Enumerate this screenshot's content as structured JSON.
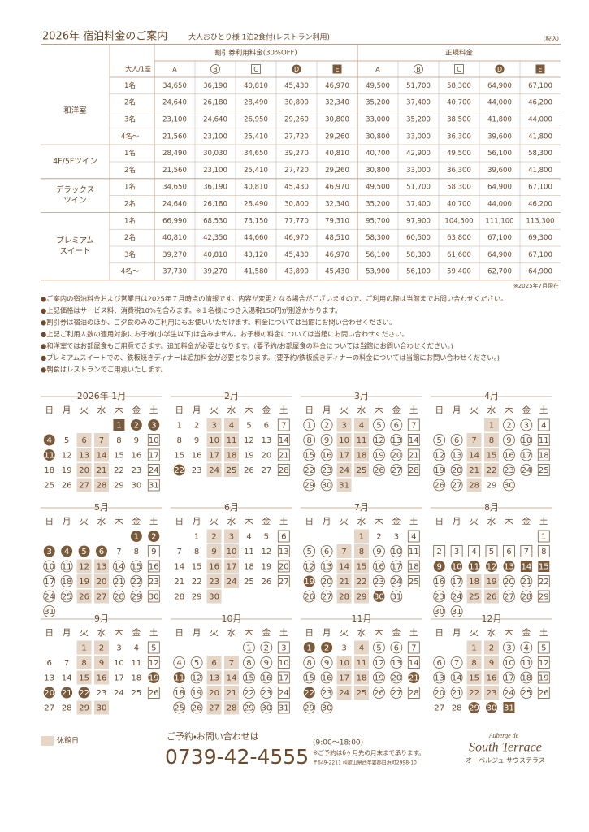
{
  "header": {
    "title": "2026年 宿泊料金のご案内",
    "subtitle": "大人おひとり様 1泊2食付(レストラン利用)",
    "tax": "(税込)"
  },
  "table": {
    "corner": "大人/1室",
    "groups": [
      "割引券利用料金(30%OFF)",
      "正規料金"
    ],
    "rates": [
      "A",
      "B",
      "C",
      "D",
      "E"
    ],
    "rooms": [
      {
        "name": [
          "和洋室"
        ],
        "rows": [
          {
            "persons": "1名",
            "values": [
              "34,650",
              "36,190",
              "40,810",
              "45,430",
              "46,970",
              "49,500",
              "51,700",
              "58,300",
              "64,900",
              "67,100"
            ]
          },
          {
            "persons": "2名",
            "values": [
              "24,640",
              "26,180",
              "28,490",
              "30,800",
              "32,340",
              "35,200",
              "37,400",
              "40,700",
              "44,000",
              "46,200"
            ]
          },
          {
            "persons": "3名",
            "values": [
              "23,100",
              "24,640",
              "26,950",
              "29,260",
              "30,800",
              "33,000",
              "35,200",
              "38,500",
              "41,800",
              "44,000"
            ]
          },
          {
            "persons": "4名～",
            "values": [
              "21,560",
              "23,100",
              "25,410",
              "27,720",
              "29,260",
              "30,800",
              "33,000",
              "36,300",
              "39,600",
              "41,800"
            ]
          }
        ]
      },
      {
        "name": [
          "4F/5Fツイン"
        ],
        "rows": [
          {
            "persons": "1名",
            "values": [
              "28,490",
              "30,030",
              "34,650",
              "39,270",
              "40,810",
              "40,700",
              "42,900",
              "49,500",
              "56,100",
              "58,300"
            ]
          },
          {
            "persons": "2名",
            "values": [
              "21,560",
              "23,100",
              "25,410",
              "27,720",
              "29,260",
              "30,800",
              "33,000",
              "36,300",
              "39,600",
              "41,800"
            ]
          }
        ]
      },
      {
        "name": [
          "デラックス",
          "ツイン"
        ],
        "rows": [
          {
            "persons": "1名",
            "values": [
              "34,650",
              "36,190",
              "40,810",
              "45,430",
              "46,970",
              "49,500",
              "51,700",
              "58,300",
              "64,900",
              "67,100"
            ]
          },
          {
            "persons": "2名",
            "values": [
              "24,640",
              "26,180",
              "28,490",
              "30,800",
              "32,340",
              "35,200",
              "37,400",
              "40,700",
              "44,000",
              "46,200"
            ]
          }
        ]
      },
      {
        "name": [
          "プレミアム",
          "スイート"
        ],
        "rows": [
          {
            "persons": "1名",
            "values": [
              "66,990",
              "68,530",
              "73,150",
              "77,770",
              "79,310",
              "95,700",
              "97,900",
              "104,500",
              "111,100",
              "113,300"
            ]
          },
          {
            "persons": "2名",
            "values": [
              "40,810",
              "42,350",
              "44,660",
              "46,970",
              "48,510",
              "58,300",
              "60,500",
              "63,800",
              "67,100",
              "69,300"
            ]
          },
          {
            "persons": "3名",
            "values": [
              "39,270",
              "40,810",
              "43,120",
              "45,430",
              "46,970",
              "56,100",
              "58,300",
              "61,600",
              "64,900",
              "67,100"
            ]
          },
          {
            "persons": "4名～",
            "values": [
              "37,730",
              "39,270",
              "41,580",
              "43,890",
              "45,430",
              "53,900",
              "56,100",
              "59,400",
              "62,700",
              "64,900"
            ]
          }
        ]
      }
    ],
    "as_of": "※2025年7月現在"
  },
  "notes": [
    "●ご案内の宿泊料金および営業日は2025年７月時点の情報です。内容が変更となる場合がございますので、ご利用の際は当館までお問い合わせください。",
    "●上記価格はサービス料、消費税10%を含みます。※１名様につき入湯税150円が別途かかります。",
    "●割引券は宿泊のほか、ご夕食のみのご利用にもお使いいただけます。料金については当館にお問い合わせください。",
    "●上記ご利用人数の適用対象にお子様(小学生以下)は含みません。お子様の料金については当館にお問い合わせください。",
    "●和洋室ではお部屋食もご用意できます。追加料金が必要となります。(要予約/お部屋食の料金については当館にお問い合わせください。)",
    "●プレミアムスイートでの、鉄板焼きディナーは追加料金が必要となります。(要予約/鉄板焼きディナーの料金については当館にお問い合わせください。)",
    "●朝食はレストランでご用意いたします。"
  ],
  "calendar": {
    "weekdays": [
      "日",
      "月",
      "火",
      "水",
      "木",
      "金",
      "土"
    ],
    "months": [
      {
        "title": "2026年 1月",
        "weeks": [
          [
            null,
            null,
            null,
            null,
            1,
            2,
            3
          ],
          [
            4,
            5,
            6,
            7,
            8,
            9,
            10
          ],
          [
            11,
            12,
            13,
            14,
            15,
            16,
            17
          ],
          [
            18,
            19,
            20,
            21,
            22,
            23,
            24
          ],
          [
            25,
            26,
            27,
            28,
            29,
            30,
            31
          ]
        ],
        "rates": "EDDDAAAAACDAAAAACAAAAAACAAAAAAC",
        "closed": [
          6,
          7,
          13,
          14,
          20,
          21,
          27,
          28
        ]
      },
      {
        "title": "2月",
        "weeks": [
          [
            1,
            2,
            3,
            4,
            5,
            6,
            7
          ],
          [
            8,
            9,
            10,
            11,
            12,
            13,
            14
          ],
          [
            15,
            16,
            17,
            18,
            19,
            20,
            21
          ],
          [
            22,
            23,
            24,
            25,
            26,
            27,
            28
          ]
        ],
        "rates": "AAAAAACAAAAAACAAAAAACDAAAAAC",
        "closed": [
          3,
          4,
          10,
          11,
          17,
          18,
          24,
          25
        ]
      },
      {
        "title": "3月",
        "weeks": [
          [
            1,
            2,
            3,
            4,
            5,
            6,
            7
          ],
          [
            8,
            9,
            10,
            11,
            12,
            13,
            14
          ],
          [
            15,
            16,
            17,
            18,
            19,
            20,
            21
          ],
          [
            22,
            23,
            24,
            25,
            26,
            27,
            28
          ],
          [
            29,
            30,
            31
          ]
        ],
        "rates": "BBAABBCBBAABBCBBAABBCBBAABBCBBA",
        "closed": [
          3,
          4,
          10,
          11,
          17,
          18,
          24,
          25,
          31
        ]
      },
      {
        "title": "4月",
        "weeks": [
          [
            null,
            null,
            null,
            1,
            2,
            3,
            4
          ],
          [
            5,
            6,
            7,
            8,
            9,
            10,
            11
          ],
          [
            12,
            13,
            14,
            15,
            16,
            17,
            18
          ],
          [
            19,
            20,
            21,
            22,
            23,
            24,
            25
          ],
          [
            26,
            27,
            28,
            29,
            30
          ]
        ],
        "rates": "ABBCBBAABBCBBAABBCBBAABBCBBAAB",
        "closed": [
          1,
          7,
          8,
          14,
          15,
          21,
          22,
          28
        ]
      },
      {
        "title": "5月",
        "weeks": [
          [
            null,
            null,
            null,
            null,
            null,
            1,
            2
          ],
          [
            3,
            4,
            5,
            6,
            7,
            8,
            9
          ],
          [
            10,
            11,
            12,
            13,
            14,
            15,
            16
          ],
          [
            17,
            18,
            19,
            20,
            21,
            22,
            23
          ],
          [
            24,
            25,
            26,
            27,
            28,
            29,
            30
          ],
          [
            31
          ]
        ],
        "rates": "DDDDDDAACBBAABBCBBAABBCBBAABBCB",
        "closed": [
          12,
          13,
          19,
          20,
          26,
          27
        ]
      },
      {
        "title": "6月",
        "weeks": [
          [
            null,
            1,
            2,
            3,
            4,
            5,
            6
          ],
          [
            7,
            8,
            9,
            10,
            11,
            12,
            13
          ],
          [
            14,
            15,
            16,
            17,
            18,
            19,
            20
          ],
          [
            21,
            22,
            23,
            24,
            25,
            26,
            27
          ],
          [
            28,
            29,
            30
          ]
        ],
        "rates": "AAAAACAAAAAACAAAAAACAAAAAACAAA",
        "closed": [
          2,
          3,
          9,
          10,
          16,
          17,
          23,
          24,
          30
        ]
      },
      {
        "title": "7月",
        "weeks": [
          [
            null,
            null,
            null,
            1,
            2,
            3,
            4
          ],
          [
            5,
            6,
            7,
            8,
            9,
            10,
            11
          ],
          [
            12,
            13,
            14,
            15,
            16,
            17,
            18
          ],
          [
            19,
            20,
            21,
            22,
            23,
            24,
            25
          ],
          [
            26,
            27,
            28,
            29,
            30,
            31
          ]
        ],
        "rates": "AAACBBAABBCBBAABBCDBAABBCBBAADB",
        "closed": [
          1,
          7,
          8,
          14,
          15,
          21,
          22,
          28,
          29
        ]
      },
      {
        "title": "8月",
        "weeks": [
          [
            null,
            null,
            null,
            null,
            null,
            null,
            1
          ],
          [
            2,
            3,
            4,
            5,
            6,
            7,
            8
          ],
          [
            9,
            10,
            11,
            12,
            13,
            14,
            15
          ],
          [
            16,
            17,
            18,
            19,
            20,
            21,
            22
          ],
          [
            23,
            24,
            25,
            26,
            27,
            28,
            29
          ],
          [
            30,
            31
          ]
        ],
        "rates": "CCCCCCCCDDDDDEEBBAABBCBBAABBCBB",
        "closed": [
          18,
          19,
          25,
          26
        ]
      },
      {
        "title": "9月",
        "weeks": [
          [
            null,
            null,
            1,
            2,
            3,
            4,
            5
          ],
          [
            6,
            7,
            8,
            9,
            10,
            11,
            12
          ],
          [
            13,
            14,
            15,
            16,
            17,
            18,
            19
          ],
          [
            20,
            21,
            22,
            23,
            24,
            25,
            26
          ],
          [
            27,
            28,
            29,
            30
          ]
        ],
        "rates": "AAAACAAAAAACAAAAAADDDDAAACAAAA",
        "closed": [
          1,
          2,
          8,
          9,
          15,
          16,
          29,
          30
        ]
      },
      {
        "title": "10月",
        "weeks": [
          [
            null,
            null,
            null,
            null,
            1,
            2,
            3
          ],
          [
            4,
            5,
            6,
            7,
            8,
            9,
            10
          ],
          [
            11,
            12,
            13,
            14,
            15,
            16,
            17
          ],
          [
            18,
            19,
            20,
            21,
            22,
            23,
            24
          ],
          [
            25,
            26,
            27,
            28,
            29,
            30,
            31
          ]
        ],
        "rates": "BBCBBAABBCDBAABBCBBAABBCBBAABBC",
        "closed": [
          6,
          7,
          13,
          14,
          20,
          21,
          27,
          28
        ]
      },
      {
        "title": "11月",
        "weeks": [
          [
            1,
            2,
            3,
            4,
            5,
            6,
            7
          ],
          [
            8,
            9,
            10,
            11,
            12,
            13,
            14
          ],
          [
            15,
            16,
            17,
            18,
            19,
            20,
            21
          ],
          [
            22,
            23,
            24,
            25,
            26,
            27,
            28
          ],
          [
            29,
            30
          ]
        ],
        "rates": "DDAABBCBBAABBCBBAABBDDBAABBCBB",
        "closed": [
          4,
          10,
          11,
          17,
          18,
          24,
          25
        ]
      },
      {
        "title": "12月",
        "weeks": [
          [
            null,
            null,
            1,
            2,
            3,
            4,
            5
          ],
          [
            6,
            7,
            8,
            9,
            10,
            11,
            12
          ],
          [
            13,
            14,
            15,
            16,
            17,
            18,
            19
          ],
          [
            20,
            21,
            22,
            23,
            24,
            25,
            26
          ],
          [
            27,
            28,
            29,
            30,
            31
          ]
        ],
        "rates": "AABBCBBAABBCBBAABBCBBAABBCAADDE",
        "closed": [
          1,
          2,
          8,
          9,
          15,
          16,
          22,
          23
        ]
      }
    ],
    "legend": "休館日"
  },
  "footer": {
    "contact": "ご予約・お問い合わせは",
    "phone": "0739-42-4555",
    "hours": "(9:00～18:00)",
    "reservation_note": "※ご予約は6ヶ月先の月末まで承ります。",
    "address": "〒649-2211 和歌山県西牟婁郡白浜町2998-10",
    "logo_top": "Auberge de",
    "logo_main": "South Terrace",
    "logo_sub": "オーベルジュ サウステラス"
  }
}
